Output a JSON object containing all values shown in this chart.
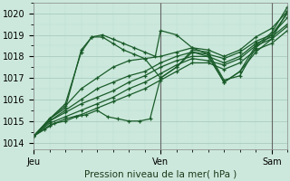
{
  "title": "Pression niveau de la mer( hPa )",
  "bg_color": "#cce8dc",
  "grid_color_major": "#aaccc0",
  "grid_color_minor": "#bbddd0",
  "line_color": "#1a5c2a",
  "ylim": [
    1013.7,
    1020.5
  ],
  "yticks": [
    1014,
    1015,
    1016,
    1017,
    1018,
    1019,
    1020
  ],
  "xlim": [
    0,
    96
  ],
  "xtick_positions": [
    0,
    48,
    90
  ],
  "xtick_labels": [
    "Jeu",
    "Ven",
    "Sam"
  ],
  "vline_x": 48,
  "vline2_x": 90,
  "series": [
    [
      0,
      1014.3,
      4,
      1014.6,
      8,
      1014.9,
      12,
      1015.0,
      16,
      1015.2,
      20,
      1015.3,
      24,
      1015.5,
      28,
      1015.2,
      32,
      1015.1,
      36,
      1015.0,
      40,
      1015.0,
      44,
      1015.1,
      48,
      1017.0,
      54,
      1017.5,
      60,
      1018.2,
      66,
      1018.0,
      72,
      1016.8,
      78,
      1017.3,
      84,
      1018.5,
      90,
      1019.1,
      96,
      1020.3
    ],
    [
      0,
      1014.3,
      6,
      1015.1,
      12,
      1015.6,
      18,
      1018.3,
      22,
      1018.9,
      26,
      1019.0,
      30,
      1018.8,
      34,
      1018.6,
      38,
      1018.4,
      42,
      1018.2,
      46,
      1018.0,
      48,
      1019.2,
      54,
      1019.0,
      60,
      1018.4,
      66,
      1018.1,
      72,
      1016.8,
      78,
      1017.3,
      84,
      1018.2,
      90,
      1018.8,
      96,
      1020.1
    ],
    [
      0,
      1014.3,
      6,
      1015.1,
      12,
      1015.8,
      18,
      1018.2,
      22,
      1018.9,
      26,
      1018.9,
      30,
      1018.6,
      34,
      1018.3,
      38,
      1018.1,
      42,
      1017.9,
      48,
      1017.0,
      54,
      1017.5,
      60,
      1018.3,
      66,
      1018.2,
      72,
      1016.9,
      78,
      1017.1,
      84,
      1018.4,
      90,
      1019.0,
      96,
      1020.0
    ],
    [
      0,
      1014.3,
      6,
      1015.1,
      12,
      1015.7,
      18,
      1016.5,
      24,
      1017.0,
      30,
      1017.5,
      36,
      1017.8,
      42,
      1017.9,
      48,
      1018.0,
      54,
      1018.2,
      60,
      1018.4,
      66,
      1018.3,
      72,
      1018.0,
      78,
      1018.3,
      84,
      1018.9,
      90,
      1019.3,
      96,
      1020.1
    ],
    [
      0,
      1014.3,
      6,
      1015.0,
      12,
      1015.5,
      18,
      1016.0,
      24,
      1016.5,
      30,
      1016.8,
      36,
      1017.1,
      42,
      1017.3,
      48,
      1017.7,
      54,
      1018.0,
      60,
      1018.2,
      66,
      1018.1,
      72,
      1017.9,
      78,
      1018.2,
      84,
      1018.7,
      90,
      1019.0,
      96,
      1019.8
    ],
    [
      0,
      1014.3,
      6,
      1015.0,
      12,
      1015.4,
      18,
      1015.8,
      24,
      1016.1,
      30,
      1016.4,
      36,
      1016.8,
      42,
      1017.1,
      48,
      1017.5,
      54,
      1017.8,
      60,
      1018.0,
      66,
      1018.0,
      72,
      1017.7,
      78,
      1018.0,
      84,
      1018.6,
      90,
      1018.9,
      96,
      1019.5
    ],
    [
      0,
      1014.3,
      6,
      1014.9,
      12,
      1015.2,
      18,
      1015.5,
      24,
      1015.8,
      30,
      1016.1,
      36,
      1016.5,
      42,
      1016.8,
      48,
      1017.2,
      54,
      1017.6,
      60,
      1017.9,
      66,
      1017.8,
      72,
      1017.6,
      78,
      1017.9,
      84,
      1018.5,
      90,
      1018.8,
      96,
      1019.4
    ],
    [
      0,
      1014.3,
      6,
      1014.8,
      12,
      1015.1,
      18,
      1015.3,
      24,
      1015.6,
      30,
      1015.9,
      36,
      1016.2,
      42,
      1016.5,
      48,
      1016.9,
      54,
      1017.3,
      60,
      1017.7,
      66,
      1017.7,
      72,
      1017.4,
      78,
      1017.7,
      84,
      1018.3,
      90,
      1018.6,
      96,
      1019.2
    ]
  ]
}
